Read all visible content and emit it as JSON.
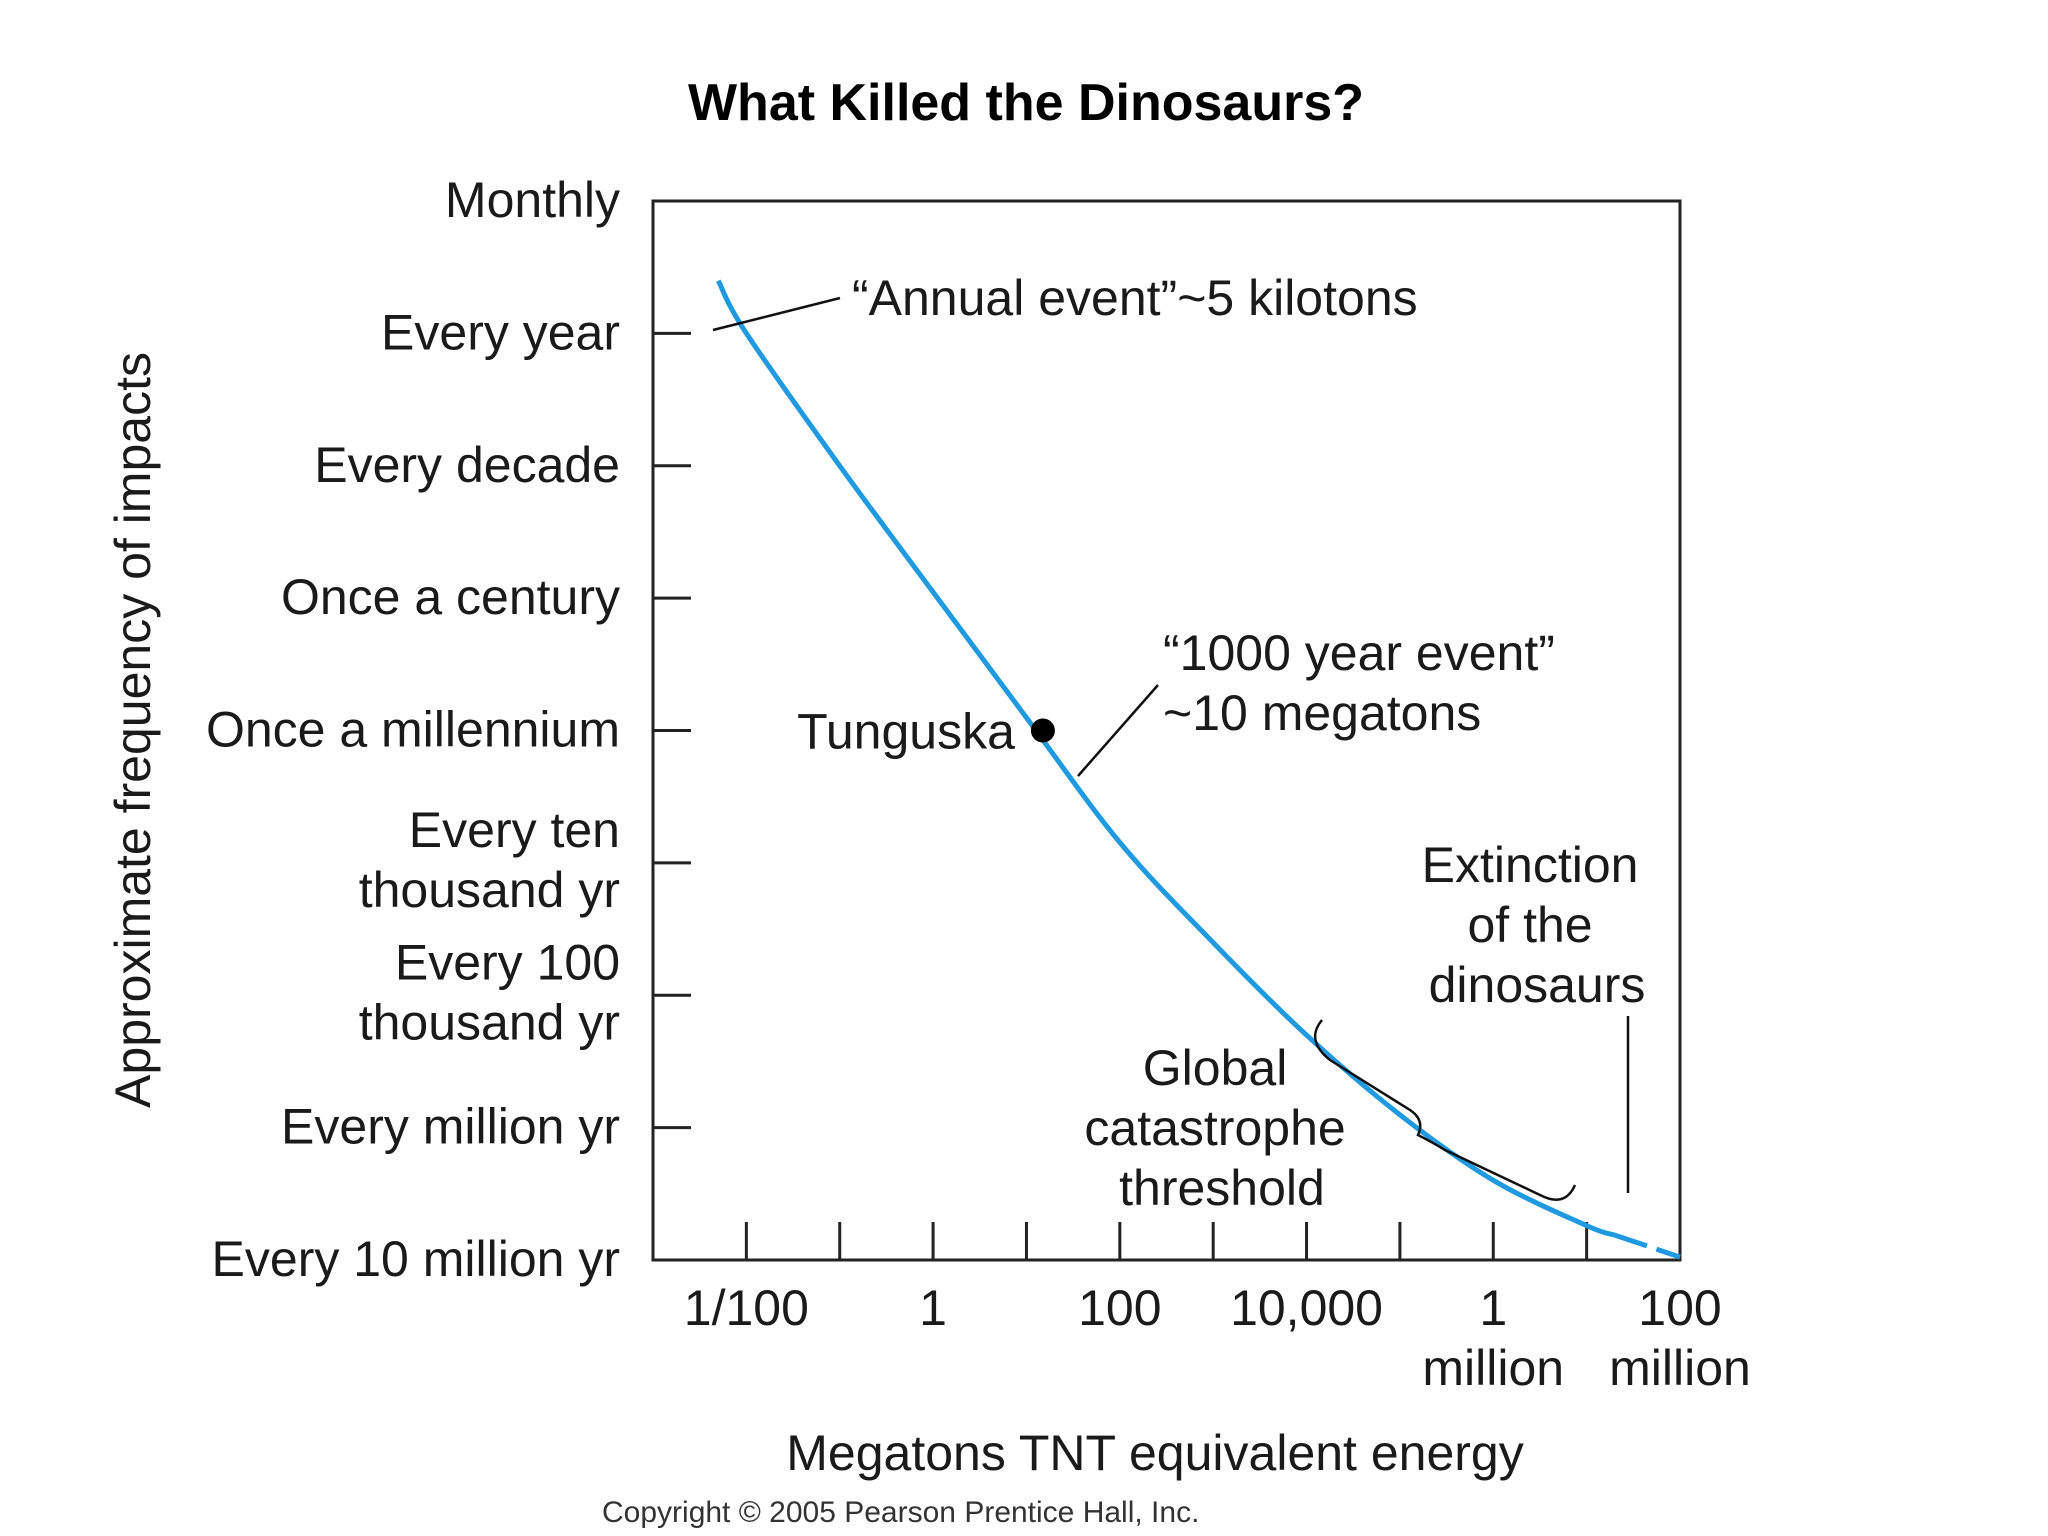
{
  "chart_data": {
    "type": "line",
    "title": "What Killed the Dinosaurs?",
    "xlabel": "Megatons TNT equivalent energy",
    "ylabel": "Approximate frequency of impacts",
    "x_scale": "log",
    "y_scale": "log",
    "x_ticks": [
      {
        "value": 0.01,
        "label": [
          "1/100"
        ]
      },
      {
        "value": 1,
        "label": [
          "1"
        ]
      },
      {
        "value": 100,
        "label": [
          "100"
        ]
      },
      {
        "value": 10000,
        "label": [
          "10,000"
        ]
      },
      {
        "value": 1000000,
        "label": [
          "1",
          "million"
        ]
      },
      {
        "value": 100000000,
        "label": [
          "100",
          "million"
        ]
      }
    ],
    "x_minor_ticks": [
      0.1,
      10,
      1000,
      100000,
      10000000
    ],
    "xlim": [
      0.001,
      100000000
    ],
    "y_ticks": [
      {
        "label": [
          "Monthly"
        ],
        "years": 0.0833
      },
      {
        "label": [
          "Every year"
        ],
        "years": 1
      },
      {
        "label": [
          "Every decade"
        ],
        "years": 10
      },
      {
        "label": [
          "Once a century"
        ],
        "years": 100
      },
      {
        "label": [
          "Once a millennium"
        ],
        "years": 1000
      },
      {
        "label": [
          "Every ten",
          "thousand yr"
        ],
        "years": 10000
      },
      {
        "label": [
          "Every 100",
          "thousand yr"
        ],
        "years": 100000
      },
      {
        "label": [
          "Every million yr"
        ],
        "years": 1000000
      },
      {
        "label": [
          "Every 10 million yr"
        ],
        "years": 10000000
      }
    ],
    "grid": false,
    "series": [
      {
        "color": "#1f9ae0",
        "points": [
          {
            "x": 0.005,
            "y": 0.4
          },
          {
            "x": 0.01,
            "y": 1.0
          },
          {
            "x": 0.1,
            "y": 10
          },
          {
            "x": 1,
            "y": 90
          },
          {
            "x": 10,
            "y": 800
          },
          {
            "x": 100,
            "y": 7000
          },
          {
            "x": 1000,
            "y": 40000
          },
          {
            "x": 10000,
            "y": 200000
          },
          {
            "x": 100000,
            "y": 800000
          },
          {
            "x": 1000000,
            "y": 2500000
          },
          {
            "x": 10000000,
            "y": 5500000
          },
          {
            "x": 100000000,
            "y": 9500000
          }
        ],
        "dashed_from_x": 20000000
      }
    ],
    "markers": [
      {
        "label": "Tunguska",
        "x": 15,
        "y": 1000
      }
    ],
    "annotations": [
      {
        "id": "annual",
        "lines": [
          "“Annual event”~5 kilotons"
        ]
      },
      {
        "id": "thousand-year",
        "lines": [
          "“1000 year event”",
          "~10 megatons"
        ]
      },
      {
        "id": "extinction",
        "lines": [
          "Extinction",
          "of the",
          "dinosaurs"
        ]
      },
      {
        "id": "global",
        "lines": [
          "Global",
          "catastrophe",
          "threshold"
        ]
      }
    ],
    "copyright": "Copyright © 2005 Pearson Prentice Hall, Inc."
  }
}
